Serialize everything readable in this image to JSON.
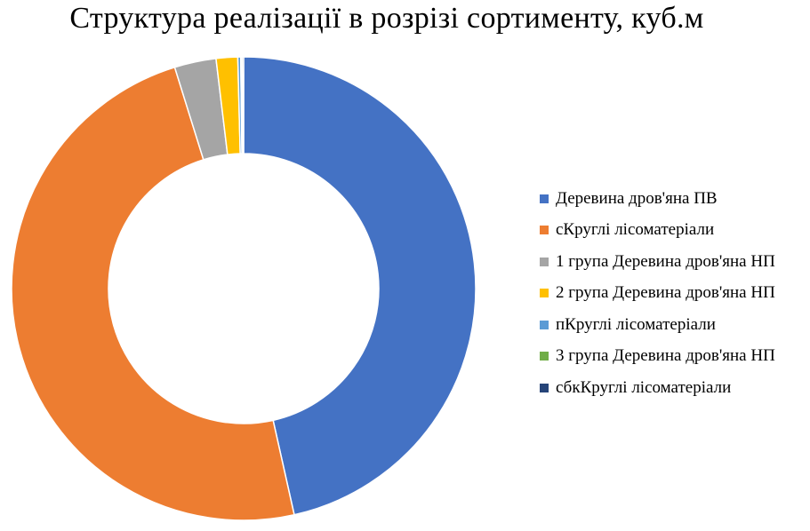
{
  "chart_data": {
    "type": "pie",
    "variant": "donut",
    "title": "Структура реалізації в розрізі сортименту, куб.м",
    "legend_position": "right",
    "categories": [
      "Деревина дров'яна ПВ",
      "сКруглі лісоматеріали",
      "1 група Деревина дров'яна НП",
      "2 група Деревина дров'яна НП",
      "пКруглі лісоматеріали",
      "3 група Деревина дров'яна НП",
      "сбкКруглі лісоматеріали"
    ],
    "values": [
      46.5,
      48.7,
      2.9,
      1.5,
      0.2,
      0.1,
      0.1
    ],
    "colors": [
      "#4472C4",
      "#ED7D31",
      "#A5A5A5",
      "#FFC000",
      "#5B9BD5",
      "#70AD47",
      "#264478"
    ]
  }
}
